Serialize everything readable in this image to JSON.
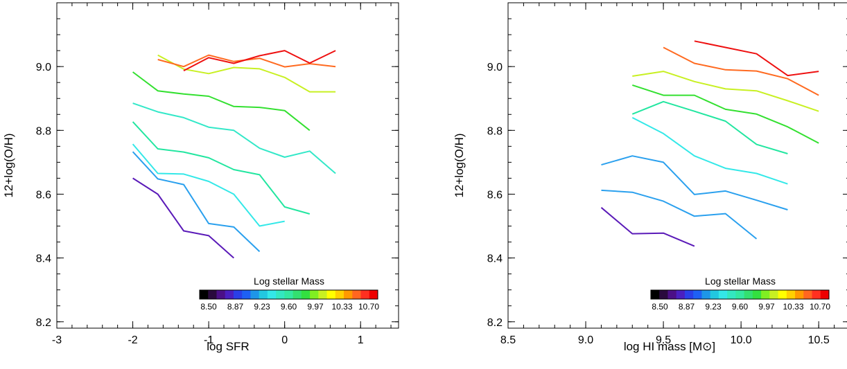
{
  "chart_data": [
    {
      "type": "line",
      "xlabel": "log SFR",
      "ylabel": "12+log(O/H)",
      "xlim": [
        -3,
        1.5
      ],
      "ylim": [
        8.18,
        9.2
      ],
      "xticks": [
        -3,
        -2,
        -1,
        0,
        1
      ],
      "xtick_labels": [
        "-3",
        "-2",
        "-1",
        "0",
        "1"
      ],
      "yticks": [
        8.2,
        8.4,
        8.6,
        8.8,
        9.0
      ],
      "ytick_labels": [
        "8.2",
        "8.4",
        "8.6",
        "8.8",
        "9.0"
      ],
      "colorbar": {
        "title": "Log stellar Mass",
        "tick_labels": [
          "8.50",
          "8.87",
          "9.23",
          "9.60",
          "9.97",
          "10.33",
          "10.70"
        ],
        "colors": [
          "#000000",
          "#2a0a3d",
          "#4b0f87",
          "#4a1fc0",
          "#2a3fe8",
          "#1e60f5",
          "#1e96e8",
          "#22c8e0",
          "#33e8e8",
          "#33e8c0",
          "#33e8a0",
          "#33e070",
          "#33e040",
          "#80ee22",
          "#c8f022",
          "#ffff00",
          "#ffd000",
          "#ff9900",
          "#ff6620",
          "#ff3020",
          "#ee0000"
        ]
      },
      "series": [
        {
          "color": "#5a1ab8",
          "points": [
            [
              -2.0,
              8.65
            ],
            [
              -1.67,
              8.6
            ],
            [
              -1.33,
              8.485
            ],
            [
              -1.0,
              8.47
            ],
            [
              -0.67,
              8.4
            ]
          ]
        },
        {
          "color": "#2aa0ee",
          "points": [
            [
              -2.0,
              8.733
            ],
            [
              -1.67,
              8.648
            ],
            [
              -1.33,
              8.63
            ],
            [
              -1.0,
              8.508
            ],
            [
              -0.67,
              8.497
            ],
            [
              -0.33,
              8.42
            ]
          ]
        },
        {
          "color": "#33e8e8",
          "points": [
            [
              -2.0,
              8.757
            ],
            [
              -1.67,
              8.665
            ],
            [
              -1.33,
              8.663
            ],
            [
              -1.0,
              8.64
            ],
            [
              -0.67,
              8.6
            ],
            [
              -0.33,
              8.5
            ],
            [
              0.0,
              8.515
            ]
          ]
        },
        {
          "color": "#22e6a0",
          "points": [
            [
              -2.0,
              8.827
            ],
            [
              -1.67,
              8.742
            ],
            [
              -1.33,
              8.732
            ],
            [
              -1.0,
              8.714
            ],
            [
              -0.67,
              8.677
            ],
            [
              -0.33,
              8.661
            ],
            [
              0.0,
              8.56
            ],
            [
              0.33,
              8.538
            ]
          ]
        },
        {
          "color": "#33e8c8",
          "points": [
            [
              -2.0,
              8.885
            ],
            [
              -1.67,
              8.858
            ],
            [
              -1.33,
              8.84
            ],
            [
              -1.0,
              8.81
            ],
            [
              -0.67,
              8.8
            ],
            [
              -0.33,
              8.744
            ],
            [
              0.0,
              8.716
            ],
            [
              0.33,
              8.735
            ],
            [
              0.67,
              8.665
            ]
          ]
        },
        {
          "color": "#33e030",
          "points": [
            [
              -2.0,
              8.983
            ],
            [
              -1.67,
              8.924
            ],
            [
              -1.33,
              8.914
            ],
            [
              -1.0,
              8.907
            ],
            [
              -0.67,
              8.875
            ],
            [
              -0.33,
              8.872
            ],
            [
              0.0,
              8.862
            ],
            [
              0.33,
              8.8
            ]
          ]
        },
        {
          "color": "#c8f022",
          "points": [
            [
              -1.67,
              9.036
            ],
            [
              -1.33,
              8.992
            ],
            [
              -1.0,
              8.978
            ],
            [
              -0.67,
              8.997
            ],
            [
              -0.33,
              8.993
            ],
            [
              0.0,
              8.966
            ],
            [
              0.33,
              8.921
            ],
            [
              0.67,
              8.921
            ]
          ]
        },
        {
          "color": "#ff6a20",
          "points": [
            [
              -1.67,
              9.022
            ],
            [
              -1.33,
              9.0
            ],
            [
              -1.0,
              9.036
            ],
            [
              -0.67,
              9.016
            ],
            [
              -0.33,
              9.026
            ],
            [
              0.0,
              8.999
            ],
            [
              0.33,
              9.009
            ],
            [
              0.67,
              9.0
            ]
          ]
        },
        {
          "color": "#ee1010",
          "points": [
            [
              -1.33,
              8.987
            ],
            [
              -1.0,
              9.028
            ],
            [
              -0.67,
              9.01
            ],
            [
              -0.33,
              9.034
            ],
            [
              0.0,
              9.05
            ],
            [
              0.33,
              9.011
            ],
            [
              0.67,
              9.05
            ]
          ]
        }
      ]
    },
    {
      "type": "line",
      "xlabel": "log HI mass [M⊙]",
      "ylabel": "12+log(O/H)",
      "xlim": [
        8.5,
        10.7
      ],
      "ylim": [
        8.18,
        9.2
      ],
      "xticks": [
        8.5,
        9.0,
        9.5,
        10.0,
        10.5
      ],
      "xtick_labels": [
        "8.5",
        "9.0",
        "9.5",
        "10.0",
        "10.5"
      ],
      "yticks": [
        8.2,
        8.4,
        8.6,
        8.8,
        9.0
      ],
      "ytick_labels": [
        "8.2",
        "8.4",
        "8.6",
        "8.8",
        "9.0"
      ],
      "colorbar": {
        "title": "Log stellar Mass",
        "tick_labels": [
          "8.50",
          "8.87",
          "9.23",
          "9.60",
          "9.97",
          "10.33",
          "10.70"
        ],
        "colors": [
          "#000000",
          "#2a0a3d",
          "#4b0f87",
          "#4a1fc0",
          "#2a3fe8",
          "#1e60f5",
          "#1e96e8",
          "#22c8e0",
          "#33e8e8",
          "#33e8c0",
          "#33e8a0",
          "#33e070",
          "#33e040",
          "#80ee22",
          "#c8f022",
          "#ffff00",
          "#ffd000",
          "#ff9900",
          "#ff6620",
          "#ff3020",
          "#ee0000"
        ]
      },
      "series": [
        {
          "color": "#5a1ab8",
          "points": [
            [
              9.1,
              8.558
            ],
            [
              9.3,
              8.476
            ],
            [
              9.5,
              8.478
            ],
            [
              9.7,
              8.437
            ]
          ]
        },
        {
          "color": "#2aa0ee",
          "points": [
            [
              9.1,
              8.612
            ],
            [
              9.3,
              8.606
            ],
            [
              9.5,
              8.578
            ],
            [
              9.7,
              8.531
            ],
            [
              9.9,
              8.539
            ],
            [
              10.1,
              8.46
            ]
          ]
        },
        {
          "color": "#2aa0ee",
          "points": [
            [
              9.1,
              8.692
            ],
            [
              9.3,
              8.72
            ],
            [
              9.5,
              8.7
            ],
            [
              9.7,
              8.599
            ],
            [
              9.9,
              8.61
            ],
            [
              10.1,
              8.581
            ],
            [
              10.3,
              8.551
            ]
          ]
        },
        {
          "color": "#33e8e8",
          "points": [
            [
              9.3,
              8.84
            ],
            [
              9.5,
              8.79
            ],
            [
              9.7,
              8.72
            ],
            [
              9.9,
              8.681
            ],
            [
              10.1,
              8.665
            ],
            [
              10.3,
              8.632
            ]
          ]
        },
        {
          "color": "#22e6a0",
          "points": [
            [
              9.3,
              8.851
            ],
            [
              9.5,
              8.89
            ],
            [
              9.7,
              8.86
            ],
            [
              9.9,
              8.829
            ],
            [
              10.1,
              8.756
            ],
            [
              10.3,
              8.727
            ]
          ]
        },
        {
          "color": "#33e030",
          "points": [
            [
              9.3,
              8.942
            ],
            [
              9.5,
              8.91
            ],
            [
              9.7,
              8.91
            ],
            [
              9.9,
              8.866
            ],
            [
              10.1,
              8.851
            ],
            [
              10.3,
              8.811
            ],
            [
              10.5,
              8.76
            ]
          ]
        },
        {
          "color": "#c8f022",
          "points": [
            [
              9.3,
              8.97
            ],
            [
              9.5,
              8.985
            ],
            [
              9.7,
              8.953
            ],
            [
              9.9,
              8.93
            ],
            [
              10.1,
              8.924
            ],
            [
              10.3,
              8.893
            ],
            [
              10.5,
              8.86
            ]
          ]
        },
        {
          "color": "#ff6a20",
          "points": [
            [
              9.5,
              9.06
            ],
            [
              9.7,
              9.01
            ],
            [
              9.9,
              8.99
            ],
            [
              10.1,
              8.986
            ],
            [
              10.3,
              8.962
            ],
            [
              10.5,
              8.91
            ]
          ]
        },
        {
          "color": "#ee1010",
          "points": [
            [
              9.7,
              9.08
            ],
            [
              9.9,
              9.06
            ],
            [
              10.1,
              9.04
            ],
            [
              10.3,
              8.972
            ],
            [
              10.5,
              8.985
            ]
          ]
        }
      ]
    }
  ]
}
